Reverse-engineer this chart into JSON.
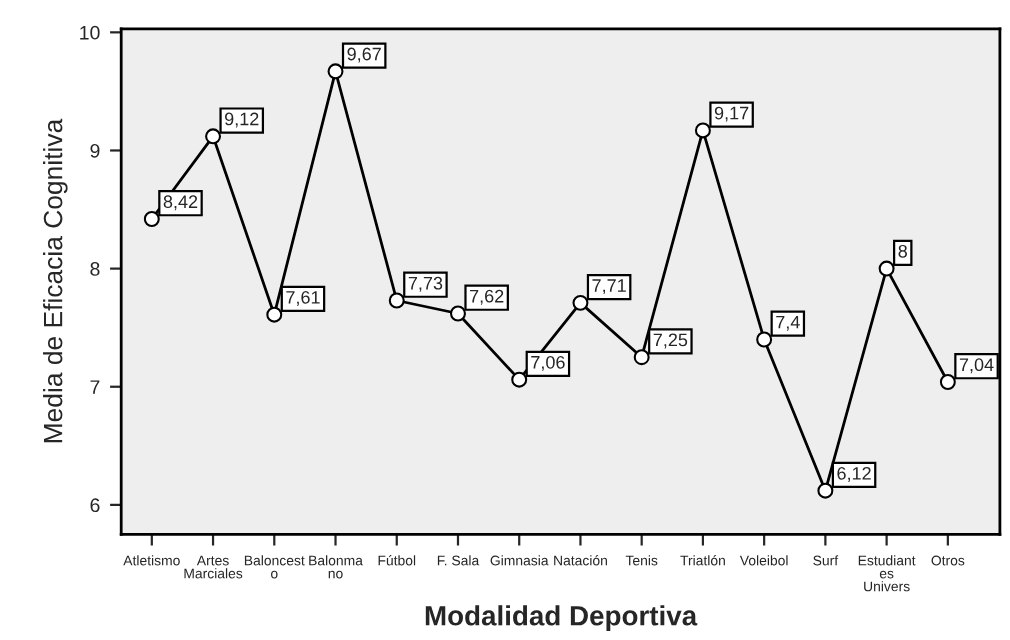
{
  "chart_data": {
    "type": "line",
    "xlabel": "Modalidad Deportiva",
    "ylabel": "Media de Eficacia Cognitiva",
    "categories": [
      "Atletismo",
      "Artes\nMarciales",
      "Baloncest\no",
      "Balonma\nno",
      "Fútbol",
      "F. Sala",
      "Gimnasia",
      "Natación",
      "Tenis",
      "Triatlón",
      "Voleibol",
      "Surf",
      "Estudiant\nes\nUnivers",
      "Otros"
    ],
    "series": [
      {
        "color": "#000000",
        "values": [
          8.42,
          9.12,
          7.61,
          9.67,
          7.73,
          7.62,
          7.06,
          7.71,
          7.25,
          9.17,
          7.4,
          6.12,
          8,
          7.04
        ]
      }
    ],
    "value_labels": [
      "8,42",
      "9,12",
      "7,61",
      "9,67",
      "7,73",
      "7,62",
      "7,06",
      "7,71",
      "7,25",
      "9,17",
      "7,4",
      "6,12",
      "8",
      "7,04"
    ],
    "ylim": [
      5.75,
      10.03
    ],
    "yticks": [
      6,
      7,
      8,
      9,
      10
    ],
    "grid": false,
    "marker": "circle",
    "line_style": "solid"
  }
}
